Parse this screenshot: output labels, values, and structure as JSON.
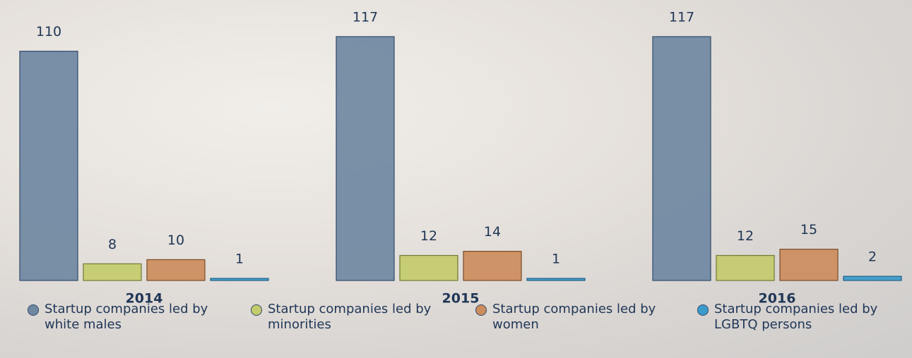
{
  "chart_data": {
    "type": "bar",
    "categories": [
      "2014",
      "2015",
      "2016"
    ],
    "series": [
      {
        "name": "Startup companies led by white males",
        "color": "#6f88a2",
        "values": [
          110,
          117,
          117
        ]
      },
      {
        "name": "Startup companies led by minorities",
        "color": "#c4cb6c",
        "values": [
          8,
          12,
          12
        ]
      },
      {
        "name": "Startup companies led by women",
        "color": "#cc8c5c",
        "values": [
          10,
          14,
          15
        ]
      },
      {
        "name": "Startup companies led by LGBTQ persons",
        "color": "#3b9bcb",
        "values": [
          1,
          1,
          2
        ]
      }
    ]
  }
}
